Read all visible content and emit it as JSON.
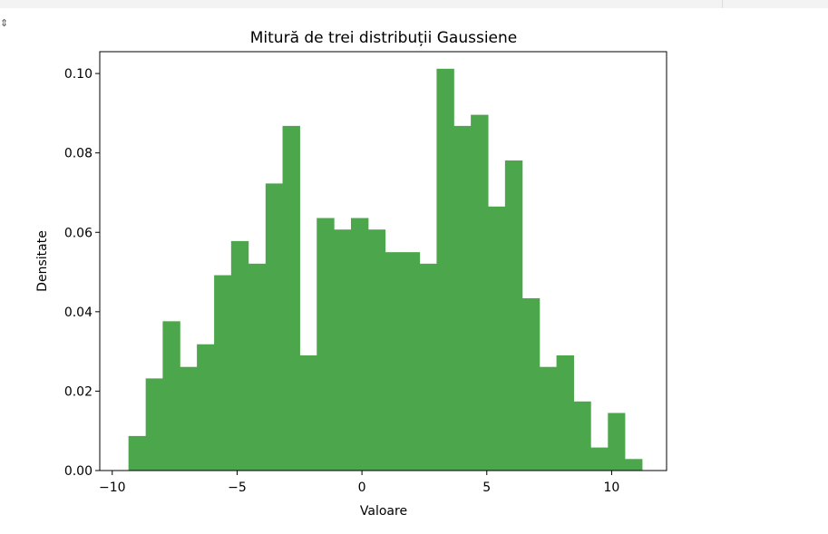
{
  "cell": {
    "output_icon": "expand-collapse-icon"
  },
  "chart_data": {
    "type": "histogram",
    "title": "Mitură de trei distribuții Gaussiene",
    "xlabel": "Valoare",
    "ylabel": "Densitate",
    "xlim": [
      -10.5,
      12.2
    ],
    "ylim": [
      0,
      0.1055
    ],
    "xticks": [
      -10,
      -5,
      0,
      5,
      10
    ],
    "xtick_labels": [
      "−10",
      "−5",
      "0",
      "5",
      "10"
    ],
    "yticks": [
      0.0,
      0.02,
      0.04,
      0.06,
      0.08,
      0.1
    ],
    "ytick_labels": [
      "0.00",
      "0.02",
      "0.04",
      "0.06",
      "0.08",
      "0.10"
    ],
    "bar_color": "#4ca64c",
    "bin_edges": [
      -9.35,
      -8.66,
      -7.98,
      -7.29,
      -6.61,
      -5.92,
      -5.24,
      -4.55,
      -3.86,
      -3.18,
      -2.49,
      -1.81,
      -1.12,
      -0.44,
      0.25,
      0.93,
      1.62,
      2.31,
      2.99,
      3.68,
      4.36,
      5.05,
      5.73,
      6.42,
      7.11,
      7.79,
      8.48,
      9.16,
      9.85,
      10.53,
      11.22
    ],
    "values": [
      0.0087,
      0.0232,
      0.0376,
      0.0261,
      0.0318,
      0.0492,
      0.0578,
      0.0521,
      0.0723,
      0.0868,
      0.029,
      0.0636,
      0.0607,
      0.0636,
      0.0607,
      0.055,
      0.055,
      0.0521,
      0.1012,
      0.0868,
      0.0896,
      0.0665,
      0.0781,
      0.0434,
      0.0261,
      0.029,
      0.0174,
      0.0058,
      0.0145,
      0.0029
    ]
  }
}
